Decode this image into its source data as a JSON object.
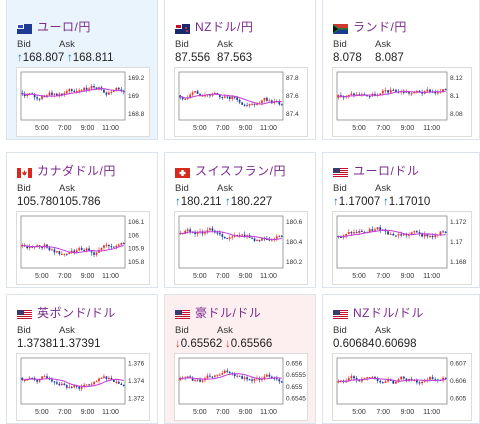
{
  "labels": {
    "bid": "Bid",
    "ask": "Ask"
  },
  "colors": {
    "up": "#e8322b",
    "down": "#1f3fa8",
    "ma": "#c33cd9",
    "name": "#7a2a8c",
    "arrow_up": "#2a6fd0",
    "arrow_down": "#d23838"
  },
  "cards": [
    {
      "name": "ユーロ/円",
      "flag": "eu",
      "bg": "blue",
      "bid": "168.807",
      "ask": "168.811",
      "dir": "up",
      "xticks": [
        "5:00",
        "7:00",
        "9:00",
        "11:00"
      ],
      "yticks": [
        "169.2",
        "169",
        "168.8"
      ],
      "seed": 1
    },
    {
      "name": "NZドル/円",
      "flag": "nz",
      "bg": "plain",
      "bid": "87.556",
      "ask": "87.563",
      "dir": "",
      "xticks": [
        "5:00",
        "7:00",
        "9:00",
        "11:00"
      ],
      "yticks": [
        "87.8",
        "87.6",
        "87.4"
      ],
      "seed": 2
    },
    {
      "name": "ランド/円",
      "flag": "za",
      "bg": "plain",
      "bid": "8.078",
      "ask": "8.087",
      "dir": "",
      "xticks": [
        "5:00",
        "7:00",
        "9:00",
        "11:00"
      ],
      "yticks": [
        "8.12",
        "8.1",
        "8.08"
      ],
      "seed": 3
    },
    {
      "name": "カナダドル/円",
      "flag": "ca",
      "bg": "plain",
      "bid": "105.780",
      "ask": "105.786",
      "dir": "",
      "xticks": [
        "5:00",
        "7:00",
        "9:00",
        "11:00"
      ],
      "yticks": [
        "106.1",
        "106",
        "105.9",
        "105.8"
      ],
      "seed": 4
    },
    {
      "name": "スイスフラン/円",
      "flag": "ch",
      "bg": "plain",
      "bid": "180.211",
      "ask": "180.227",
      "dir": "up",
      "xticks": [
        "5:00",
        "7:00",
        "9:00",
        "11:00"
      ],
      "yticks": [
        "180.6",
        "180.4",
        "180.2"
      ],
      "seed": 5
    },
    {
      "name": "ユーロ/ドル",
      "flag": "us",
      "bg": "plain",
      "bid": "1.17007",
      "ask": "1.17010",
      "dir": "up",
      "xticks": [
        "5:00",
        "7:00",
        "9:00",
        "11:00"
      ],
      "yticks": [
        "1.172",
        "1.17",
        "1.168"
      ],
      "seed": 6
    },
    {
      "name": "英ポンド/ドル",
      "flag": "us",
      "bg": "plain",
      "bid": "1.37381",
      "ask": "1.37391",
      "dir": "",
      "xticks": [
        "5:00",
        "7:00",
        "9:00",
        "11:00"
      ],
      "yticks": [
        "1.376",
        "1.374",
        "1.372"
      ],
      "seed": 7
    },
    {
      "name": "豪ドル/ドル",
      "flag": "us",
      "bg": "pink",
      "bid": "0.65562",
      "ask": "0.65566",
      "dir": "down",
      "xticks": [
        "5:00",
        "7:00",
        "9:00",
        "11:00"
      ],
      "yticks": [
        "0.656",
        "0.6555",
        "0.655",
        "0.6545"
      ],
      "seed": 8
    },
    {
      "name": "NZドル/ドル",
      "flag": "us",
      "bg": "plain",
      "bid": "0.60684",
      "ask": "0.60698",
      "dir": "",
      "xticks": [
        "5:00",
        "7:00",
        "9:00",
        "11:00"
      ],
      "yticks": [
        "0.607",
        "0.606",
        "0.605"
      ],
      "seed": 9
    }
  ]
}
